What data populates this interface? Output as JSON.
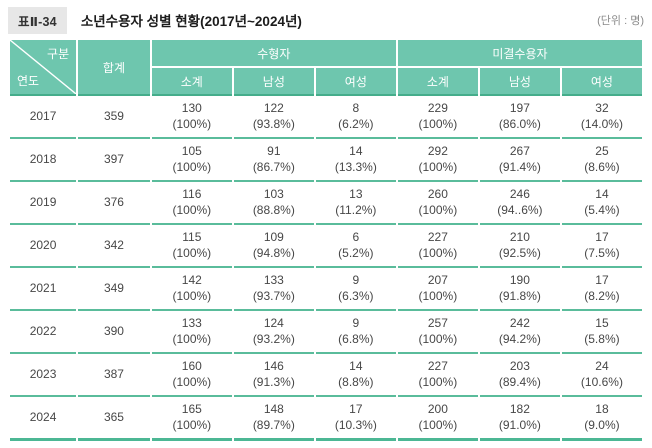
{
  "title_bar": {
    "table_label": "표Ⅱ-34",
    "title": "소년수용자 성별 현황(2017년~2024년)",
    "unit": "(단위 : 명)"
  },
  "table": {
    "corner": {
      "top": "구분",
      "bottom": "연도"
    },
    "col_total": "합계",
    "groups": [
      {
        "label": "수형자",
        "sub": [
          "소계",
          "남성",
          "여성"
        ]
      },
      {
        "label": "미결수용자",
        "sub": [
          "소계",
          "남성",
          "여성"
        ]
      }
    ],
    "rows": [
      {
        "year": "2017",
        "total": "359",
        "cells": [
          [
            "130",
            "(100%)"
          ],
          [
            "122",
            "(93.8%)"
          ],
          [
            "8",
            "(6.2%)"
          ],
          [
            "229",
            "(100%)"
          ],
          [
            "197",
            "(86.0%)"
          ],
          [
            "32",
            "(14.0%)"
          ]
        ]
      },
      {
        "year": "2018",
        "total": "397",
        "cells": [
          [
            "105",
            "(100%)"
          ],
          [
            "91",
            "(86.7%)"
          ],
          [
            "14",
            "(13.3%)"
          ],
          [
            "292",
            "(100%)"
          ],
          [
            "267",
            "(91.4%)"
          ],
          [
            "25",
            "(8.6%)"
          ]
        ]
      },
      {
        "year": "2019",
        "total": "376",
        "cells": [
          [
            "116",
            "(100%)"
          ],
          [
            "103",
            "(88.8%)"
          ],
          [
            "13",
            "(11.2%)"
          ],
          [
            "260",
            "(100%)"
          ],
          [
            "246",
            "(94..6%)"
          ],
          [
            "14",
            "(5.4%)"
          ]
        ]
      },
      {
        "year": "2020",
        "total": "342",
        "cells": [
          [
            "115",
            "(100%)"
          ],
          [
            "109",
            "(94.8%)"
          ],
          [
            "6",
            "(5.2%)"
          ],
          [
            "227",
            "(100%)"
          ],
          [
            "210",
            "(92.5%)"
          ],
          [
            "17",
            "(7.5%)"
          ]
        ]
      },
      {
        "year": "2021",
        "total": "349",
        "cells": [
          [
            "142",
            "(100%)"
          ],
          [
            "133",
            "(93.7%)"
          ],
          [
            "9",
            "(6.3%)"
          ],
          [
            "207",
            "(100%)"
          ],
          [
            "190",
            "(91.8%)"
          ],
          [
            "17",
            "(8.2%)"
          ]
        ]
      },
      {
        "year": "2022",
        "total": "390",
        "cells": [
          [
            "133",
            "(100%)"
          ],
          [
            "124",
            "(93.2%)"
          ],
          [
            "9",
            "(6.8%)"
          ],
          [
            "257",
            "(100%)"
          ],
          [
            "242",
            "(94.2%)"
          ],
          [
            "15",
            "(5.8%)"
          ]
        ]
      },
      {
        "year": "2023",
        "total": "387",
        "cells": [
          [
            "160",
            "(100%)"
          ],
          [
            "146",
            "(91.3%)"
          ],
          [
            "14",
            "(8.8%)"
          ],
          [
            "227",
            "(100%)"
          ],
          [
            "203",
            "(89.4%)"
          ],
          [
            "24",
            "(10.6%)"
          ]
        ]
      },
      {
        "year": "2024",
        "total": "365",
        "cells": [
          [
            "165",
            "(100%)"
          ],
          [
            "148",
            "(89.7%)"
          ],
          [
            "17",
            "(10.3%)"
          ],
          [
            "200",
            "(100%)"
          ],
          [
            "182",
            "(91.0%)"
          ],
          [
            "18",
            "(9.0%)"
          ]
        ]
      }
    ]
  },
  "colors": {
    "header_bg": "#6ec6ae",
    "header_underline": "#45ad8b",
    "row_line": "#5abc9b",
    "bottom_line": "#4cb794",
    "label_badge_bg": "#e7e7e7",
    "body_text": "#474747"
  }
}
